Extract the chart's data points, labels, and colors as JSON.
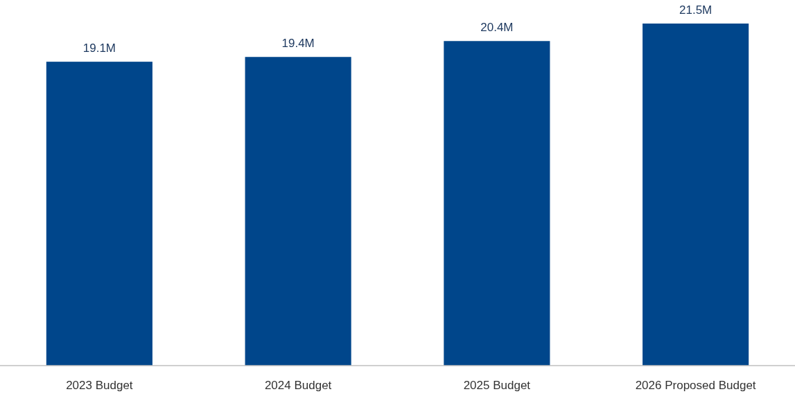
{
  "chart_data": {
    "type": "bar",
    "categories": [
      "2023 Budget",
      "2024 Budget",
      "2025 Budget",
      "2026 Proposed Budget"
    ],
    "values": [
      19.1,
      19.4,
      20.4,
      21.5
    ],
    "value_labels": [
      "19.1M",
      "19.4M",
      "20.4M",
      "21.5M"
    ],
    "color": "#00468b"
  }
}
